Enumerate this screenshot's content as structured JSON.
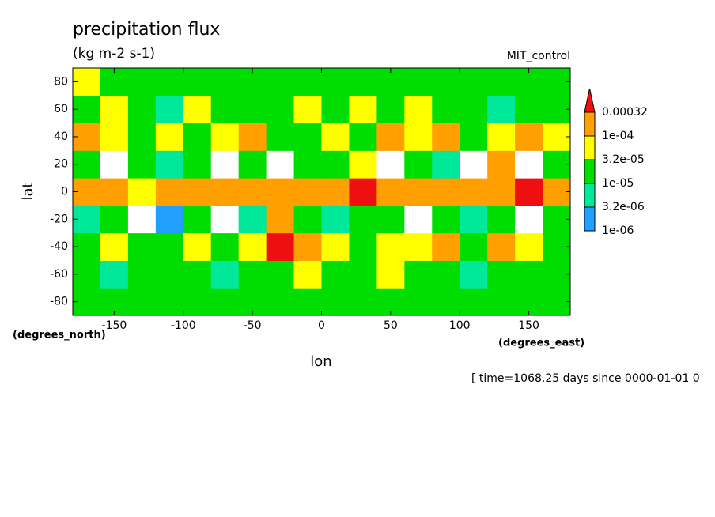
{
  "chart_data": {
    "type": "contour",
    "title": "precipitation flux",
    "units": "(kg m-2 s-1)",
    "dataset": "MIT_control",
    "x_label": "lon",
    "y_label": "lat",
    "x_units": "(degrees_east)",
    "y_units": "(degrees_north)",
    "footer": "[ time=1068.25 days since 0000-01-01 0",
    "xlim": [
      -180,
      180
    ],
    "ylim": [
      -90,
      90
    ],
    "xticks": [
      -150,
      -100,
      -50,
      0,
      50,
      100,
      150
    ],
    "yticks": [
      -80,
      -60,
      -40,
      -20,
      0,
      20,
      40,
      60,
      80
    ],
    "lon": [
      -170,
      -150,
      -130,
      -110,
      -90,
      -70,
      -50,
      -30,
      -10,
      10,
      30,
      50,
      70,
      90,
      110,
      130,
      150,
      170
    ],
    "lat": [
      -80,
      -60,
      -40,
      -20,
      0,
      20,
      40,
      60,
      80
    ],
    "z": [
      [
        1.2e-05,
        1.2e-05,
        2e-05,
        1.2e-05,
        1.2e-05,
        2e-05,
        1.2e-05,
        1.2e-05,
        1.2e-05,
        2e-05,
        1.2e-05,
        1.2e-05,
        1.2e-05,
        2e-05,
        1.2e-05,
        1.2e-05,
        1.2e-05,
        1.2e-05
      ],
      [
        2e-05,
        8e-06,
        2e-05,
        1.5e-05,
        2e-05,
        8e-06,
        2e-05,
        2e-05,
        4e-05,
        2e-05,
        1.5e-05,
        4e-05,
        2e-05,
        2e-05,
        8e-06,
        2e-05,
        2e-05,
        1.5e-05
      ],
      [
        2e-05,
        4e-05,
        2e-05,
        1.5e-05,
        4e-05,
        2e-05,
        4e-05,
        0.00035,
        0.00012,
        4e-05,
        2e-05,
        5e-05,
        4e-05,
        0.00012,
        2e-05,
        0.00012,
        4e-05,
        2e-05
      ],
      [
        5e-06,
        2e-05,
        5e-07,
        2e-06,
        2e-05,
        5e-07,
        5e-06,
        0.00012,
        2e-05,
        5e-06,
        2e-05,
        2e-05,
        5e-07,
        2e-05,
        5e-06,
        2e-05,
        5e-07,
        2e-05
      ],
      [
        0.00025,
        0.00012,
        5e-05,
        0.00012,
        0.00025,
        0.00012,
        0.00012,
        0.00025,
        0.00012,
        0.00012,
        0.00035,
        0.00025,
        0.00012,
        0.00025,
        0.00012,
        0.00012,
        0.00035,
        0.00012
      ],
      [
        2e-05,
        5e-07,
        2e-05,
        8e-06,
        2e-05,
        5e-07,
        2e-05,
        5e-07,
        1.5e-05,
        2e-05,
        5e-05,
        5e-07,
        2e-05,
        8e-06,
        5e-07,
        0.00012,
        5e-07,
        2e-05
      ],
      [
        0.00012,
        4e-05,
        2e-05,
        4e-05,
        2e-05,
        4e-05,
        0.00012,
        2e-05,
        2e-05,
        5e-05,
        2e-05,
        0.00012,
        4e-05,
        0.00012,
        2e-05,
        4e-05,
        0.00025,
        4e-05
      ],
      [
        2e-05,
        4e-05,
        1.5e-05,
        8e-06,
        4e-05,
        2e-05,
        2e-05,
        2e-05,
        4e-05,
        1.5e-05,
        4e-05,
        2e-05,
        4e-05,
        1.5e-05,
        2e-05,
        8e-06,
        2e-05,
        2e-05
      ],
      [
        4e-05,
        1.5e-05,
        1.5e-05,
        1.5e-05,
        1.5e-05,
        1.5e-05,
        1.5e-05,
        1.5e-05,
        1.5e-05,
        1.5e-05,
        1.5e-05,
        1.5e-05,
        1.5e-05,
        1.5e-05,
        1.5e-05,
        1.5e-05,
        1.5e-05,
        1.5e-05
      ]
    ],
    "levels": [
      {
        "value": 1e-06,
        "label": "1e-06"
      },
      {
        "value": 3.2e-06,
        "label": "3.2e-06"
      },
      {
        "value": 1e-05,
        "label": "1e-05"
      },
      {
        "value": 3.2e-05,
        "label": "3.2e-05"
      },
      {
        "value": 0.0001,
        "label": "1e-04"
      },
      0.00032
    ],
    "colors": [
      "#22a0ff",
      "#00e89a",
      "#00dd00",
      "#ffff00",
      "#ffa000",
      "#ee1010"
    ]
  }
}
